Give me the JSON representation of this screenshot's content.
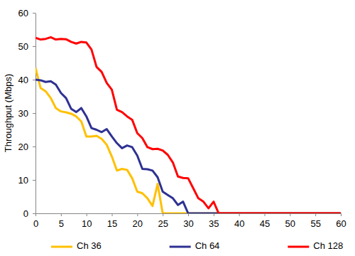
{
  "chart_data": {
    "type": "line",
    "y_label": "Throughput (Mbps)",
    "x": [
      0,
      1,
      2,
      3,
      4,
      5,
      6,
      7,
      8,
      9,
      10,
      11,
      12,
      13,
      14,
      15,
      16,
      17,
      18,
      19,
      20,
      21,
      22,
      23,
      24,
      25,
      26,
      27,
      28,
      29,
      30,
      31,
      32,
      33,
      34,
      35,
      36,
      37,
      38,
      39,
      40,
      41,
      42,
      43,
      44,
      45,
      46,
      47,
      48,
      49,
      50,
      51,
      52,
      53,
      54,
      55,
      56,
      57,
      58,
      59,
      60
    ],
    "series": [
      {
        "name": "Ch 36",
        "color": "#ffc000",
        "values": [
          43.5,
          37.5,
          36.5,
          34.5,
          31.5,
          30.5,
          30.2,
          29.8,
          29,
          27.5,
          23,
          23,
          23.2,
          22.3,
          20.5,
          17,
          12.8,
          13.3,
          13,
          10.5,
          6.5,
          6,
          4.5,
          2.2,
          8.8,
          0,
          0,
          0,
          0,
          0,
          0,
          0,
          0,
          0,
          0,
          0,
          0,
          0,
          0,
          0,
          0,
          0,
          0,
          0,
          0,
          0,
          0,
          0,
          0,
          0,
          0,
          0,
          0,
          0,
          0,
          0,
          0,
          0,
          0,
          0,
          0
        ]
      },
      {
        "name": "Ch 64",
        "color": "#2e3192",
        "values": [
          40,
          39.8,
          39.3,
          39.5,
          38.5,
          36,
          34.5,
          31.3,
          30.3,
          31.5,
          29,
          25.5,
          25,
          24.3,
          25.2,
          23,
          21,
          19.5,
          20.3,
          19.8,
          17.3,
          13.3,
          13.2,
          12.8,
          10.8,
          6.5,
          5.5,
          4.5,
          2.5,
          3.5,
          0,
          0,
          0,
          0,
          0,
          0,
          0,
          0,
          0,
          0,
          0,
          0,
          0,
          0,
          0,
          0,
          0,
          0,
          0,
          0,
          0,
          0,
          0,
          0,
          0,
          0,
          0,
          0,
          0,
          0,
          0
        ]
      },
      {
        "name": "Ch 128",
        "color": "#ff0000",
        "values": [
          52.5,
          52,
          52.2,
          52.7,
          52,
          52.2,
          52.1,
          51.3,
          50.8,
          51.3,
          51.1,
          49,
          43.8,
          42.3,
          39,
          37,
          31,
          30.3,
          29,
          28,
          24,
          22.5,
          19.8,
          19.2,
          19.3,
          18.8,
          17.5,
          15.2,
          11,
          10.6,
          10.5,
          7.5,
          4.5,
          3.5,
          1.5,
          3.5,
          0,
          0,
          0,
          0,
          0,
          0,
          0,
          0,
          0,
          0,
          0,
          0,
          0,
          0,
          0,
          0,
          0,
          0,
          0,
          0,
          0,
          0,
          0,
          0,
          0
        ]
      }
    ],
    "xlim": [
      0,
      60
    ],
    "xticks": [
      0,
      5,
      10,
      15,
      20,
      25,
      30,
      35,
      40,
      45,
      50,
      55,
      60
    ],
    "ylim": [
      0,
      60
    ],
    "yticks": [
      0,
      10,
      20,
      30,
      40,
      50,
      60
    ],
    "grid": false,
    "legend": "bottom"
  }
}
